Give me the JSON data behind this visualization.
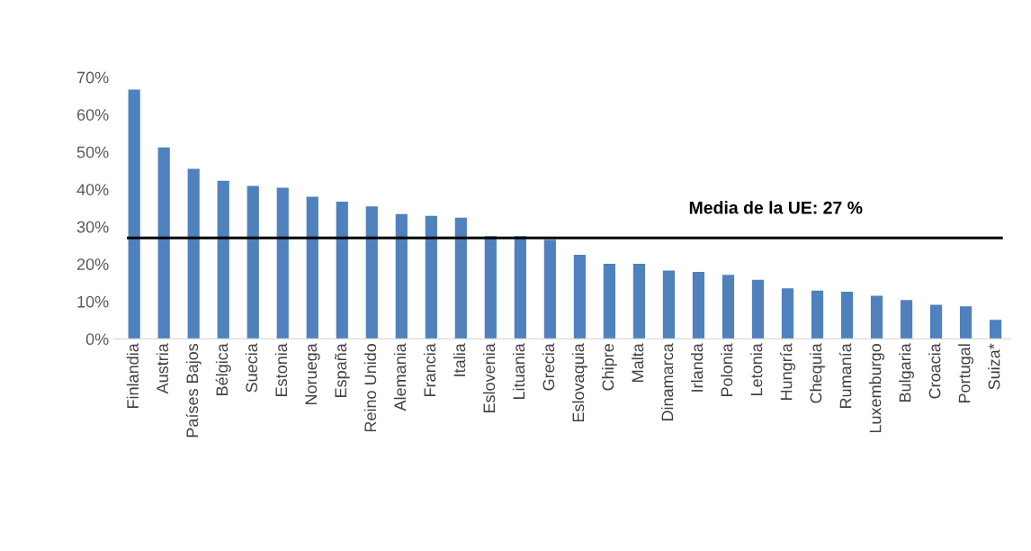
{
  "chart_data": {
    "type": "bar",
    "categories": [
      "Finlandia",
      "Austria",
      "Países Bajos",
      "Bélgica",
      "Suecia",
      "Estonia",
      "Noruega",
      "España",
      "Reino Unido",
      "Alemania",
      "Francia",
      "Italia",
      "Eslovenia",
      "Lituania",
      "Grecia",
      "Eslovaquia",
      "Chipre",
      "Malta",
      "Dinamarca",
      "Irlanda",
      "Polonia",
      "Letonia",
      "Hungría",
      "Chequia",
      "Rumanía",
      "Luxemburgo",
      "Bulgaria",
      "Croacia",
      "Portugal",
      "Suiza*"
    ],
    "values": [
      66.7,
      51.2,
      45.5,
      42.3,
      40.9,
      40.4,
      38.0,
      36.7,
      35.4,
      33.4,
      32.9,
      32.4,
      27.5,
      27.5,
      26.5,
      22.5,
      20.1,
      20.1,
      18.3,
      17.9,
      17.1,
      15.8,
      13.5,
      12.9,
      12.6,
      11.5,
      10.4,
      9.1,
      8.7,
      5.1
    ],
    "color": "#4f81bd",
    "ylim": [
      0,
      70
    ],
    "yticks": [
      {
        "value": 0,
        "label": "0%"
      },
      {
        "value": 10,
        "label": "10%"
      },
      {
        "value": 20,
        "label": "20%"
      },
      {
        "value": 30,
        "label": "30%"
      },
      {
        "value": 40,
        "label": "40%"
      },
      {
        "value": 50,
        "label": "50%"
      },
      {
        "value": 60,
        "label": "60%"
      },
      {
        "value": 70,
        "label": "70%"
      }
    ],
    "ref_lines": [
      {
        "axis": "y",
        "value": 27,
        "label": "Media de la UE: 27 %",
        "color": "#000000",
        "line_style": "solid"
      }
    ],
    "grid": false,
    "legend": false
  }
}
